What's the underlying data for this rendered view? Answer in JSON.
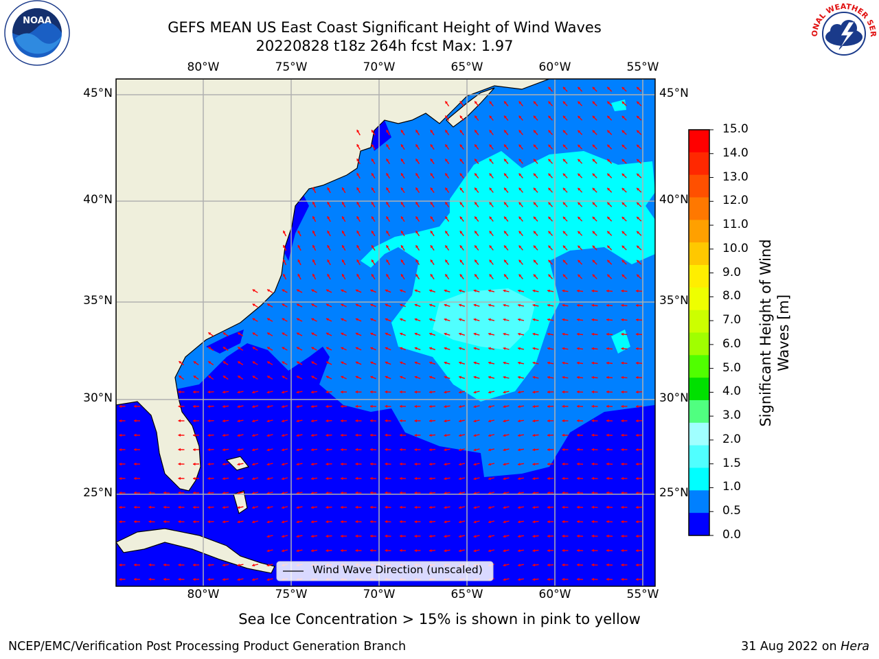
{
  "title_line1": "GEFS MEAN US East Coast Significant Height of Wind Waves",
  "title_line2": "20220828 t18z 264h fcst   Max: 1.97",
  "lon_ticks": [
    "80°W",
    "75°W",
    "70°W",
    "65°W",
    "60°W",
    "55°W"
  ],
  "lat_ticks": [
    "45°N",
    "40°N",
    "35°N",
    "30°N",
    "25°N"
  ],
  "legend_label": "Wind Wave Direction (unscaled)",
  "colorbar": {
    "label": "Significant Height of Wind Waves [m]",
    "label_line1": "Significant Height of Wind",
    "label_line2": "Waves [m]",
    "ticks": [
      "15.0",
      "14.0",
      "13.0",
      "12.0",
      "11.0",
      "10.0",
      "9.0",
      "8.0",
      "7.0",
      "6.0",
      "5.0",
      "4.0",
      "3.0",
      "2.0",
      "1.5",
      "1.0",
      "0.5",
      "0.0"
    ],
    "colors_top_to_bottom": [
      "#ff0000",
      "#ff2800",
      "#ff5000",
      "#ff7800",
      "#ffa000",
      "#ffc800",
      "#ffee00",
      "#eeff00",
      "#ccff00",
      "#a0ff00",
      "#50ff00",
      "#00e000",
      "#50ff80",
      "#a0ffff",
      "#50ffff",
      "#00ffff",
      "#0080ff",
      "#0000ff"
    ]
  },
  "map_colors": {
    "land": "#efefdc",
    "ocean_0_05": "#0000ff",
    "ocean_05_10": "#0080ff",
    "ocean_10_15": "#00ffff",
    "ocean_15_20": "#50ffff",
    "arrow": "#ff0000"
  },
  "footnote": "Sea Ice Concentration > 15% is shown in pink to yellow",
  "footer_left": "NCEP/EMC/Verification Post Processing Product Generation Branch",
  "footer_right_date": "31 Aug 2022 on",
  "footer_right_machine": "Hera",
  "logos": {
    "left": "noaa-logo",
    "right": "nws-logo",
    "nws_text": "NATIONAL WEATHER SERVICE",
    "noaa_text": "NOAA"
  }
}
